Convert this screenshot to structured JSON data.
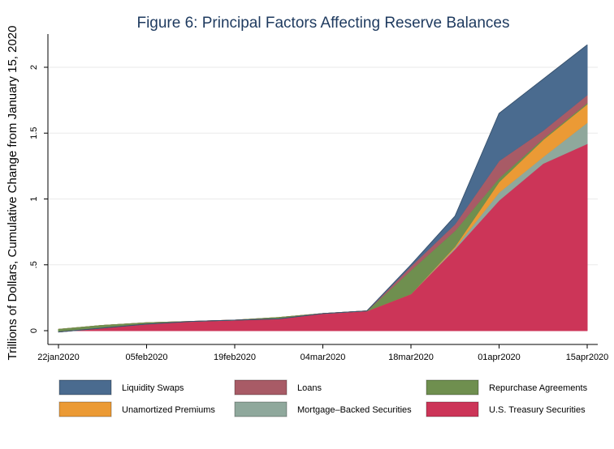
{
  "chart_data": {
    "type": "area",
    "stacked": true,
    "title": "Figure 6: Principal Factors Affecting Reserve Balances",
    "ylabel": "Trillions of Dollars, Cumulative Change from January 15, 2020",
    "xlabel": "",
    "x": [
      "22jan2020",
      "29jan2020",
      "05feb2020",
      "12feb2020",
      "19feb2020",
      "26feb2020",
      "04mar2020",
      "11mar2020",
      "18mar2020",
      "25mar2020",
      "01apr2020",
      "08apr2020",
      "15apr2020"
    ],
    "x_tick_labels": [
      "22jan2020",
      "05feb2020",
      "19feb2020",
      "04mar2020",
      "18mar2020",
      "01apr2020",
      "15apr2020"
    ],
    "y_ticks": [
      0,
      0.5,
      1,
      1.5,
      2
    ],
    "y_tick_labels": [
      "0",
      ".5",
      "1",
      "1.5",
      "2"
    ],
    "ylim": [
      -0.1,
      2.2
    ],
    "grid": true,
    "legend_position": "bottom",
    "series": [
      {
        "name": "U.S. Treasury Securities",
        "color": "#cc3558",
        "values": [
          0.01,
          0.04,
          0.06,
          0.07,
          0.08,
          0.1,
          0.13,
          0.15,
          0.28,
          0.62,
          0.99,
          1.27,
          1.42
        ]
      },
      {
        "name": "Mortgage–Backed Securities",
        "color": "#8fa89c",
        "values": [
          0,
          0,
          0,
          0,
          0,
          0,
          0,
          0,
          0,
          0.01,
          0.06,
          0.05,
          0.16
        ]
      },
      {
        "name": "Unamortized Premiums",
        "color": "#eb9a35",
        "values": [
          0,
          0,
          0,
          0,
          0,
          0,
          0,
          0,
          0,
          0.01,
          0.08,
          0.13,
          0.14
        ]
      },
      {
        "name": "Repurchase Agreements",
        "color": "#6f8f4f",
        "values": [
          -0.02,
          -0.02,
          -0.01,
          0,
          0,
          -0.01,
          0,
          0,
          0.18,
          0.12,
          0.03,
          0.01,
          0.01
        ]
      },
      {
        "name": "Loans",
        "color": "#a85b66",
        "values": [
          0,
          0,
          0,
          0,
          0,
          0,
          0,
          0,
          0.03,
          0.05,
          0.13,
          0.06,
          0.06
        ]
      },
      {
        "name": "Liquidity Swaps",
        "color": "#4a6b8f",
        "values": [
          0,
          0,
          0,
          0,
          0,
          0,
          0,
          0,
          0.01,
          0.06,
          0.36,
          0.39,
          0.38
        ]
      }
    ],
    "legend_order": [
      "Liquidity Swaps",
      "Loans",
      "Repurchase Agreements",
      "Unamortized Premiums",
      "Mortgage–Backed Securities",
      "U.S. Treasury Securities"
    ]
  }
}
